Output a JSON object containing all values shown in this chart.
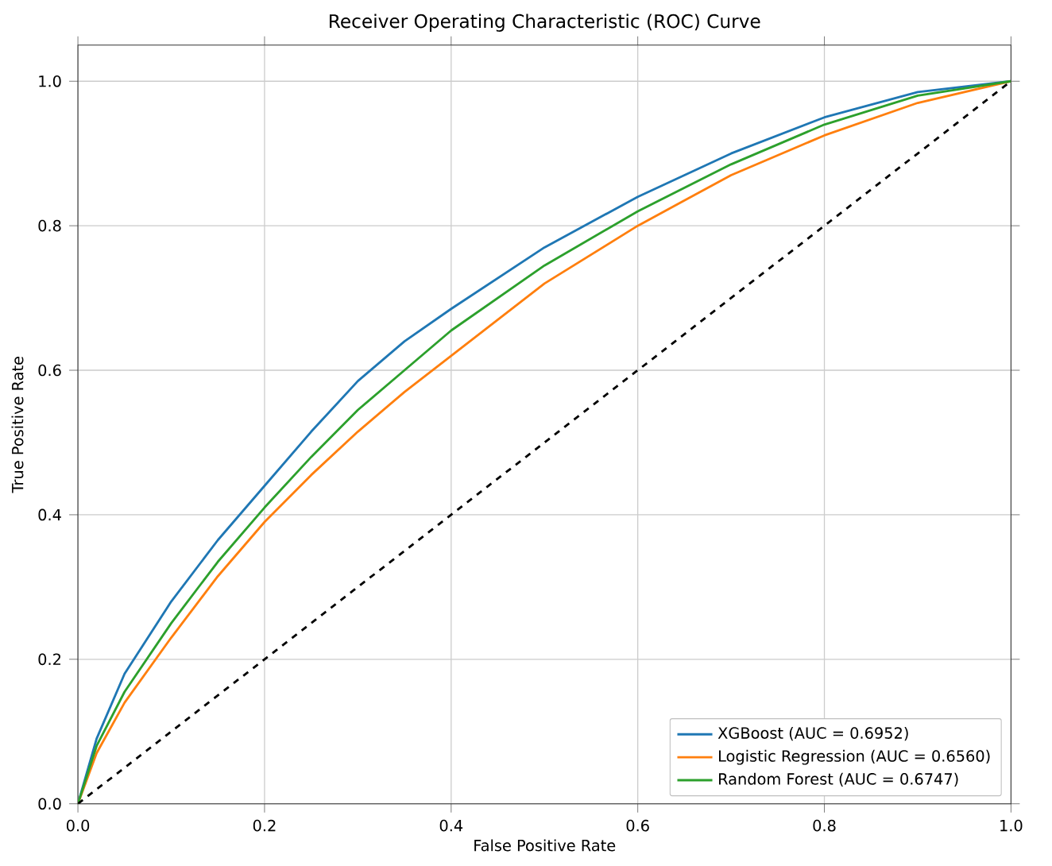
{
  "chart_data": {
    "type": "line",
    "title": "Receiver Operating Characteristic (ROC) Curve",
    "xlabel": "False Positive Rate",
    "ylabel": "True Positive Rate",
    "xlim": [
      0,
      1
    ],
    "ylim": [
      0,
      1.05
    ],
    "xticks": [
      {
        "value": 0,
        "label": "0.0"
      },
      0.2,
      0.4,
      0.6,
      0.8,
      {
        "value": 1,
        "label": "1.0"
      }
    ],
    "yticks": [
      {
        "value": 0,
        "label": "0.0"
      },
      0.2,
      0.4,
      0.6,
      0.8,
      {
        "value": 1,
        "label": "1.0"
      }
    ],
    "grid": true,
    "legend": "bottom right",
    "line_style": "solid",
    "series": [
      {
        "name": "XGBoost (AUC = 0.6952)",
        "color": "#1f77b4",
        "x": [
          0,
          0.02,
          0.05,
          0.1,
          0.15,
          0.2,
          0.25,
          0.3,
          0.35,
          0.4,
          0.5,
          0.6,
          0.7,
          0.8,
          0.9,
          1
        ],
        "values": [
          0,
          0.09,
          0.18,
          0.28,
          0.365,
          0.44,
          0.515,
          0.585,
          0.64,
          0.685,
          0.77,
          0.84,
          0.9,
          0.95,
          0.985,
          1
        ]
      },
      {
        "name": "Logistic Regression (AUC = 0.6560)",
        "color": "#ff7f0e",
        "x": [
          0,
          0.02,
          0.05,
          0.1,
          0.15,
          0.2,
          0.25,
          0.3,
          0.35,
          0.4,
          0.5,
          0.6,
          0.7,
          0.8,
          0.9,
          1
        ],
        "values": [
          0,
          0.07,
          0.14,
          0.23,
          0.315,
          0.39,
          0.455,
          0.515,
          0.57,
          0.62,
          0.72,
          0.8,
          0.87,
          0.925,
          0.97,
          1
        ]
      },
      {
        "name": "Random Forest (AUC = 0.6747)",
        "color": "#2ca02c",
        "x": [
          0,
          0.02,
          0.05,
          0.1,
          0.15,
          0.2,
          0.25,
          0.3,
          0.35,
          0.4,
          0.5,
          0.6,
          0.7,
          0.8,
          0.9,
          1
        ],
        "values": [
          0,
          0.08,
          0.155,
          0.25,
          0.335,
          0.41,
          0.48,
          0.545,
          0.6,
          0.655,
          0.745,
          0.82,
          0.885,
          0.94,
          0.98,
          1
        ]
      },
      {
        "color": "#000000",
        "line_style": "dashed",
        "x": [
          0,
          1
        ],
        "values": [
          0,
          1
        ]
      }
    ]
  }
}
